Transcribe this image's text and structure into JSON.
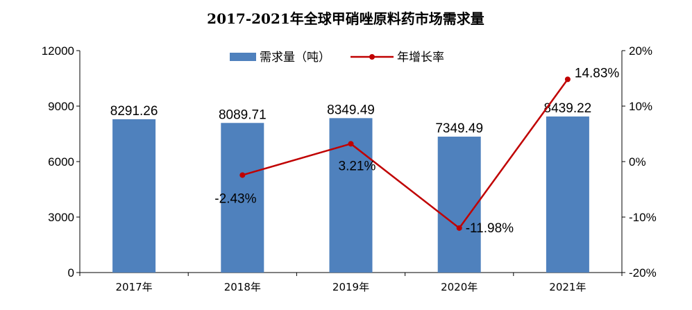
{
  "chart_data": {
    "type": "bar+line",
    "title": "2017-2021年全球甲硝唑原料药市场需求量",
    "categories": [
      "2017年",
      "2018年",
      "2019年",
      "2020年",
      "2021年"
    ],
    "series": [
      {
        "name": "需求量（吨）",
        "type": "bar",
        "axis": "left",
        "color": "#4f81bd",
        "values": [
          8291.26,
          8089.71,
          8349.49,
          7349.49,
          8439.22
        ],
        "labels": [
          "8291.26",
          "8089.71",
          "8349.49",
          "7349.49",
          "8439.22"
        ]
      },
      {
        "name": "年增长率",
        "type": "line",
        "axis": "right",
        "color": "#c00000",
        "values": [
          null,
          -2.43,
          3.21,
          -11.98,
          14.83
        ],
        "labels": [
          "",
          "-2.43%",
          "3.21%",
          "-11.98%",
          "14.83%"
        ]
      }
    ],
    "y_left": {
      "min": 0,
      "max": 12000,
      "ticks": [
        "0",
        "3000",
        "6000",
        "9000",
        "12000"
      ]
    },
    "y_right": {
      "min": -20,
      "max": 20,
      "ticks": [
        "-20%",
        "-10%",
        "0%",
        "10%",
        "20%"
      ]
    },
    "legend_position": "top-center",
    "grid": false
  }
}
